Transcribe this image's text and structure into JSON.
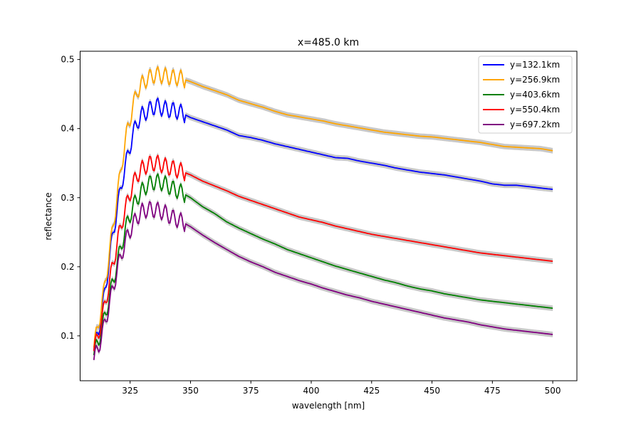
{
  "chart_data": {
    "type": "line",
    "title": "x=485.0 km",
    "xlabel": "wavelength [nm]",
    "ylabel": "reflectance",
    "xlim": [
      304.3,
      510
    ],
    "ylim": [
      0.035,
      0.512
    ],
    "xticks": [
      325,
      350,
      375,
      400,
      425,
      450,
      475,
      500
    ],
    "yticks": [
      0.1,
      0.2,
      0.3,
      0.4,
      0.5
    ],
    "x_tick_labels": [
      "325",
      "350",
      "375",
      "400",
      "425",
      "450",
      "475",
      "500"
    ],
    "y_tick_labels": [
      "0.1",
      "0.2",
      "0.3",
      "0.4",
      "0.5"
    ],
    "grid": false,
    "legend_position": "top-right",
    "uncertainty_band_color": "#c8c8c8",
    "x": [
      310,
      312,
      314,
      316,
      318,
      320,
      322,
      324,
      326,
      328,
      330,
      332,
      334,
      336,
      338,
      340,
      342,
      345,
      350,
      355,
      360,
      365,
      370,
      375,
      380,
      385,
      390,
      395,
      400,
      405,
      410,
      415,
      420,
      425,
      430,
      435,
      440,
      445,
      450,
      455,
      460,
      465,
      470,
      475,
      480,
      485,
      490,
      495,
      500
    ],
    "series": [
      {
        "name": "y=132.1km",
        "color": "#0000ff",
        "values": [
          0.078,
          0.11,
          0.15,
          0.2,
          0.25,
          0.29,
          0.33,
          0.36,
          0.39,
          0.41,
          0.42,
          0.425,
          0.43,
          0.433,
          0.43,
          0.428,
          0.427,
          0.425,
          0.416,
          0.41,
          0.404,
          0.398,
          0.39,
          0.387,
          0.383,
          0.378,
          0.374,
          0.37,
          0.366,
          0.362,
          0.358,
          0.357,
          0.353,
          0.35,
          0.347,
          0.343,
          0.34,
          0.337,
          0.335,
          0.333,
          0.33,
          0.327,
          0.324,
          0.32,
          0.318,
          0.318,
          0.316,
          0.314,
          0.312
        ]
      },
      {
        "name": "y=256.9km",
        "color": "#ffa500",
        "values": [
          0.083,
          0.12,
          0.16,
          0.21,
          0.26,
          0.31,
          0.36,
          0.4,
          0.43,
          0.455,
          0.465,
          0.472,
          0.476,
          0.478,
          0.477,
          0.476,
          0.474,
          0.474,
          0.468,
          0.461,
          0.455,
          0.449,
          0.441,
          0.436,
          0.431,
          0.425,
          0.42,
          0.417,
          0.414,
          0.411,
          0.407,
          0.404,
          0.401,
          0.398,
          0.395,
          0.393,
          0.391,
          0.389,
          0.388,
          0.386,
          0.384,
          0.382,
          0.38,
          0.377,
          0.374,
          0.373,
          0.372,
          0.371,
          0.368
        ]
      },
      {
        "name": "y=403.6km",
        "color": "#008000",
        "values": [
          0.072,
          0.095,
          0.12,
          0.15,
          0.18,
          0.21,
          0.24,
          0.265,
          0.285,
          0.3,
          0.31,
          0.318,
          0.322,
          0.323,
          0.322,
          0.319,
          0.314,
          0.31,
          0.3,
          0.287,
          0.277,
          0.265,
          0.256,
          0.248,
          0.24,
          0.233,
          0.225,
          0.219,
          0.213,
          0.207,
          0.201,
          0.196,
          0.191,
          0.186,
          0.181,
          0.177,
          0.172,
          0.168,
          0.165,
          0.161,
          0.158,
          0.155,
          0.152,
          0.15,
          0.148,
          0.146,
          0.144,
          0.142,
          0.14
        ]
      },
      {
        "name": "y=550.4km",
        "color": "#ff0000",
        "values": [
          0.078,
          0.105,
          0.135,
          0.17,
          0.205,
          0.24,
          0.27,
          0.295,
          0.318,
          0.333,
          0.342,
          0.347,
          0.35,
          0.35,
          0.348,
          0.345,
          0.343,
          0.34,
          0.333,
          0.324,
          0.317,
          0.31,
          0.302,
          0.296,
          0.29,
          0.284,
          0.278,
          0.272,
          0.268,
          0.264,
          0.259,
          0.255,
          0.251,
          0.247,
          0.244,
          0.241,
          0.238,
          0.235,
          0.232,
          0.229,
          0.226,
          0.223,
          0.22,
          0.218,
          0.216,
          0.214,
          0.212,
          0.21,
          0.208
        ]
      },
      {
        "name": "y=697.2km",
        "color": "#800080",
        "values": [
          0.065,
          0.085,
          0.11,
          0.14,
          0.17,
          0.2,
          0.225,
          0.245,
          0.26,
          0.272,
          0.28,
          0.283,
          0.283,
          0.282,
          0.28,
          0.277,
          0.272,
          0.268,
          0.258,
          0.246,
          0.235,
          0.225,
          0.215,
          0.207,
          0.2,
          0.192,
          0.186,
          0.18,
          0.175,
          0.169,
          0.164,
          0.159,
          0.155,
          0.15,
          0.146,
          0.142,
          0.138,
          0.134,
          0.13,
          0.126,
          0.123,
          0.12,
          0.116,
          0.113,
          0.11,
          0.108,
          0.106,
          0.104,
          0.102
        ]
      }
    ]
  }
}
